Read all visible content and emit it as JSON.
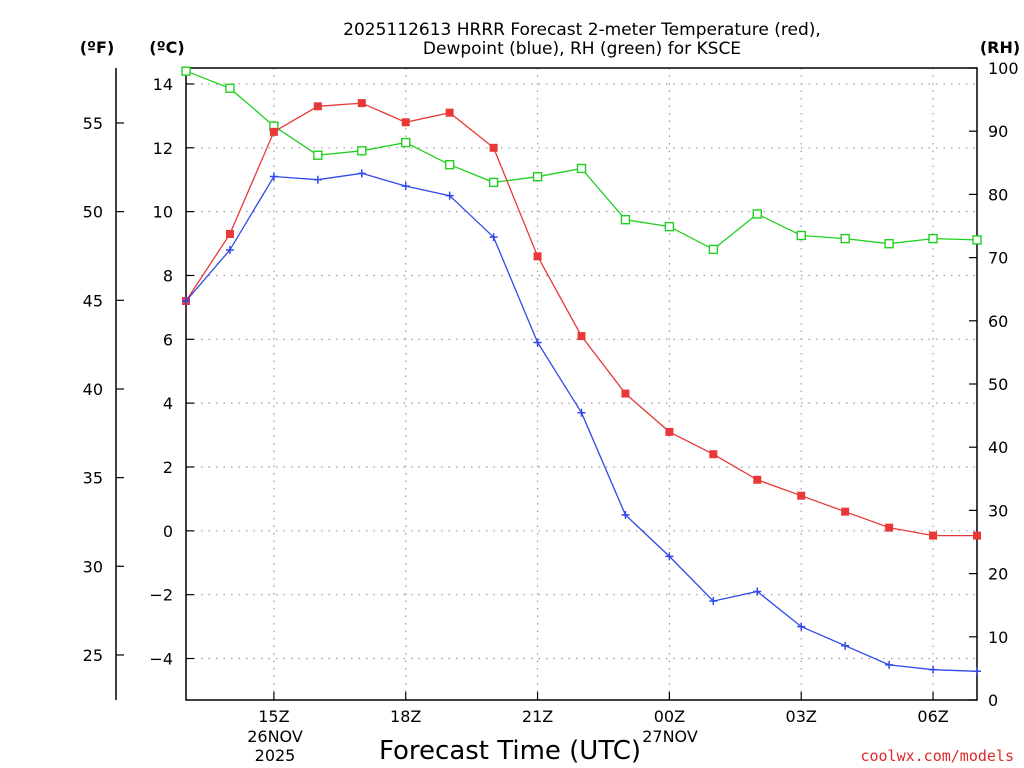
{
  "chart_data": {
    "type": "line",
    "title_line1": "2025112613 HRRR Forecast 2-meter Temperature (red),",
    "title_line2": "Dewpoint (blue), RH (green) for KSCE",
    "xlabel": "Forecast Time (UTC)",
    "credit": "coolwx.com/models",
    "unit_f": "(ºF)",
    "unit_c": "(ºC)",
    "unit_rh": "(RH)",
    "date_label_1": "26NOV",
    "date_label_2": "2025",
    "date_label_3": "27NOV",
    "x_hours": [
      13,
      14,
      15,
      16,
      17,
      18,
      19,
      20,
      21,
      22,
      23,
      24,
      25,
      26,
      27,
      28,
      29,
      30,
      31
    ],
    "x_ticks": [
      {
        "hour": 15,
        "label": "15Z"
      },
      {
        "hour": 18,
        "label": "18Z"
      },
      {
        "hour": 21,
        "label": "21Z"
      },
      {
        "hour": 24,
        "label": "00Z"
      },
      {
        "hour": 27,
        "label": "03Z"
      },
      {
        "hour": 30,
        "label": "06Z"
      }
    ],
    "xlim": [
      13,
      31
    ],
    "ylim_c": [
      -5.3,
      14.5
    ],
    "ylim_rh": [
      0,
      100
    ],
    "c_ticks": [
      {
        "v": 14,
        "label": "14"
      },
      {
        "v": 12,
        "label": "12"
      },
      {
        "v": 10,
        "label": "10"
      },
      {
        "v": 8,
        "label": "8"
      },
      {
        "v": 6,
        "label": "6"
      },
      {
        "v": 4,
        "label": "4"
      },
      {
        "v": 2,
        "label": "2"
      },
      {
        "v": 0,
        "label": "0"
      },
      {
        "v": -2,
        "label": "−2"
      },
      {
        "v": -4,
        "label": "−4"
      }
    ],
    "f_ticks": [
      {
        "v": 55,
        "label": "55"
      },
      {
        "v": 50,
        "label": "50"
      },
      {
        "v": 45,
        "label": "45"
      },
      {
        "v": 40,
        "label": "40"
      },
      {
        "v": 35,
        "label": "35"
      },
      {
        "v": 30,
        "label": "30"
      },
      {
        "v": 25,
        "label": "25"
      }
    ],
    "rh_ticks": [
      {
        "v": 100,
        "label": "100"
      },
      {
        "v": 90,
        "label": "90"
      },
      {
        "v": 80,
        "label": "80"
      },
      {
        "v": 70,
        "label": "70"
      },
      {
        "v": 60,
        "label": "60"
      },
      {
        "v": 50,
        "label": "50"
      },
      {
        "v": 40,
        "label": "40"
      },
      {
        "v": 30,
        "label": "30"
      },
      {
        "v": 20,
        "label": "20"
      },
      {
        "v": 10,
        "label": "10"
      },
      {
        "v": 0,
        "label": "0"
      }
    ],
    "series": [
      {
        "name": "Temperature",
        "color": "#e83838",
        "axis": "c",
        "marker": "square-filled",
        "values": [
          7.2,
          9.3,
          12.5,
          13.3,
          13.4,
          12.8,
          13.1,
          12.0,
          8.6,
          6.1,
          4.3,
          3.1,
          2.4,
          1.6,
          1.1,
          0.6,
          0.1,
          -0.15,
          -0.15
        ]
      },
      {
        "name": "Dewpoint",
        "color": "#3048e8",
        "axis": "c",
        "marker": "plus",
        "values": [
          7.2,
          8.8,
          11.1,
          11.0,
          11.2,
          10.8,
          10.5,
          9.2,
          5.9,
          3.7,
          0.5,
          -0.8,
          -2.2,
          -1.9,
          -3.0,
          -3.6,
          -4.2,
          -4.35,
          -4.4
        ]
      },
      {
        "name": "RH",
        "color": "#20d020",
        "axis": "rh",
        "marker": "square-open",
        "values": [
          99.5,
          96.8,
          90.8,
          86.2,
          86.9,
          88.2,
          84.7,
          81.9,
          82.8,
          84.1,
          76.0,
          74.9,
          71.3,
          76.9,
          73.5,
          73.0,
          72.2,
          73.0,
          72.8
        ]
      }
    ]
  }
}
